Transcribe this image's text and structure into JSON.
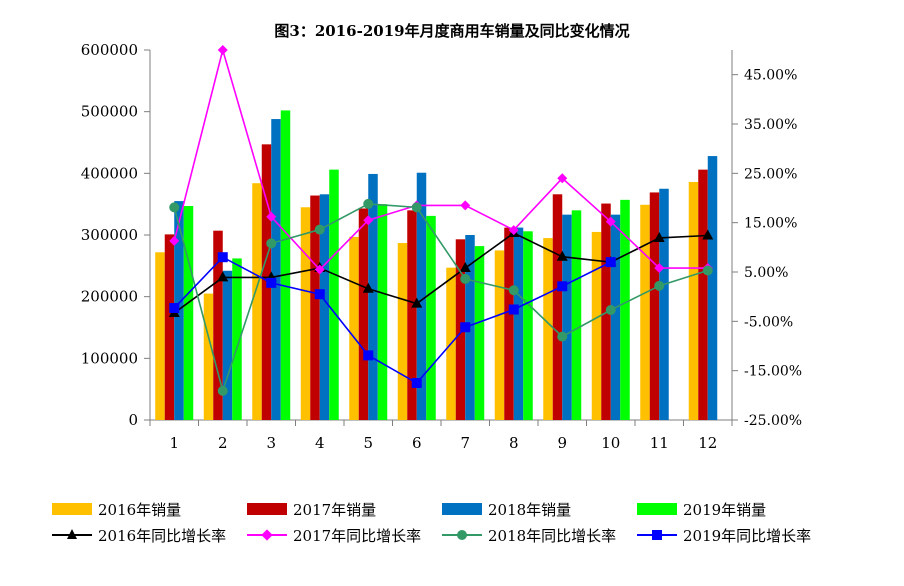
{
  "chart_data": {
    "type": "bar+line",
    "title": "图3：2016-2019年月度商用车销量及同比变化情况",
    "categories": [
      "1",
      "2",
      "3",
      "4",
      "5",
      "6",
      "7",
      "8",
      "9",
      "10",
      "11",
      "12"
    ],
    "y_left": {
      "min": 0,
      "max": 600000,
      "ticks": [
        "0",
        "100000",
        "200000",
        "300000",
        "400000",
        "500000",
        "600000"
      ]
    },
    "y_right": {
      "min": -25,
      "max": 50,
      "ticks": [
        "-25.00%",
        "-15.00%",
        "-5.00%",
        "5.00%",
        "15.00%",
        "25.00%",
        "35.00%",
        "45.00%"
      ]
    },
    "bar_series": [
      {
        "name": "2016年销量",
        "color": "#FFC000",
        "values": [
          272000,
          205000,
          384000,
          345000,
          297000,
          287000,
          247000,
          275000,
          295000,
          305000,
          349000,
          386000
        ]
      },
      {
        "name": "2017年销量",
        "color": "#C00000",
        "values": [
          301000,
          307000,
          447000,
          364000,
          343000,
          340000,
          293000,
          312000,
          366000,
          351000,
          369000,
          406000
        ]
      },
      {
        "name": "2018年销量",
        "color": "#0070C0",
        "values": [
          355000,
          242000,
          488000,
          366000,
          399000,
          401000,
          300000,
          312000,
          333000,
          333000,
          375000,
          428000
        ]
      },
      {
        "name": "2019年销量",
        "color": "#00FF00",
        "values": [
          347000,
          262000,
          502000,
          406000,
          350000,
          331000,
          282000,
          306000,
          340000,
          357000,
          null,
          null
        ]
      }
    ],
    "line_series": [
      {
        "name": "2016年同比增长率",
        "color": "#000000",
        "marker": "triangle",
        "values": [
          -3.3,
          3.9,
          3.9,
          5.8,
          1.6,
          -1.4,
          5.8,
          12.9,
          8.1,
          7.0,
          11.9,
          12.4
        ]
      },
      {
        "name": "2017年同比增长率",
        "color": "#FF00FF",
        "marker": "diamond",
        "values": [
          11.3,
          50.0,
          16.2,
          5.5,
          15.5,
          18.5,
          18.5,
          13.5,
          24.0,
          15.2,
          5.8,
          5.8
        ]
      },
      {
        "name": "2018年同比增长率",
        "color": "#339966",
        "marker": "circle",
        "values": [
          18.1,
          -19.1,
          10.8,
          13.6,
          18.8,
          18.1,
          3.6,
          1.3,
          -8.1,
          -2.7,
          2.2,
          5.3
        ]
      },
      {
        "name": "2019年同比增长率",
        "color": "#0000FF",
        "marker": "square",
        "values": [
          -2.3,
          8.0,
          2.8,
          0.5,
          -11.9,
          -17.5,
          -6.2,
          -2.6,
          2.1,
          7.0,
          null,
          null
        ]
      }
    ]
  }
}
